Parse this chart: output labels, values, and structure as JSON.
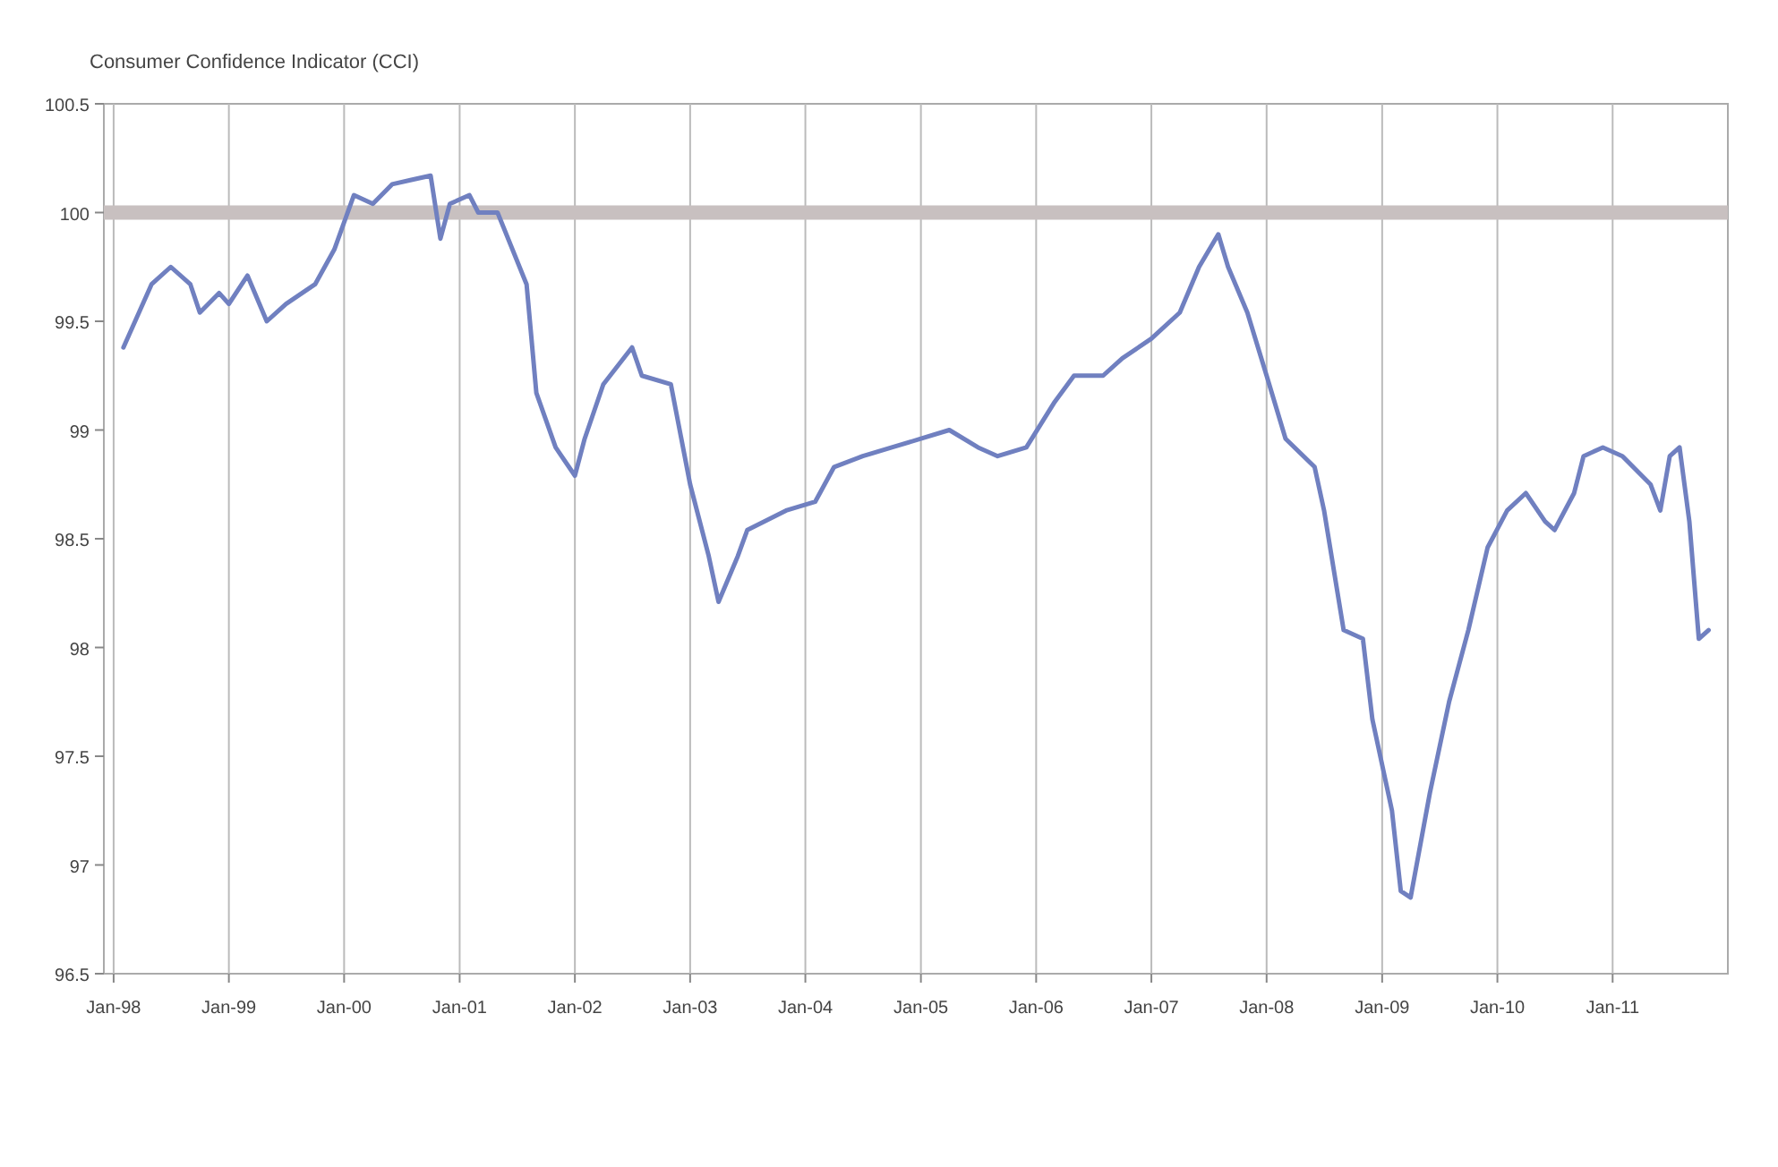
{
  "chart_data": {
    "type": "line",
    "title": "Consumer Confidence Indicator (CCI)",
    "x": [
      "1998-02",
      "1998-05",
      "1998-07",
      "1998-09",
      "1998-10",
      "1998-12",
      "1999-01",
      "1999-03",
      "1999-05",
      "1999-07",
      "1999-10",
      "1999-12",
      "2000-02",
      "2000-04",
      "2000-06",
      "2000-08",
      "2000-10",
      "2000-11",
      "2000-12",
      "2001-02",
      "2001-03",
      "2001-05",
      "2001-08",
      "2001-09",
      "2001-11",
      "2002-01",
      "2002-02",
      "2002-04",
      "2002-07",
      "2002-08",
      "2002-11",
      "2003-01",
      "2003-03",
      "2003-04",
      "2003-06",
      "2003-07",
      "2003-11",
      "2004-02",
      "2004-04",
      "2004-07",
      "2004-10",
      "2005-01",
      "2005-04",
      "2005-07",
      "2005-09",
      "2005-12",
      "2006-03",
      "2006-05",
      "2006-08",
      "2006-10",
      "2007-01",
      "2007-04",
      "2007-06",
      "2007-08",
      "2007-09",
      "2007-11",
      "2008-01",
      "2008-03",
      "2008-06",
      "2008-07",
      "2008-09",
      "2008-11",
      "2008-12",
      "2009-02",
      "2009-03",
      "2009-04",
      "2009-06",
      "2009-08",
      "2009-10",
      "2009-12",
      "2010-02",
      "2010-04",
      "2010-06",
      "2010-07",
      "2010-09",
      "2010-10",
      "2010-12",
      "2011-02",
      "2011-05",
      "2011-06",
      "2011-07",
      "2011-08",
      "2011-09",
      "2011-10",
      "2011-11"
    ],
    "series": [
      {
        "color": "#7080c0",
        "values": [
          99.38,
          99.67,
          99.75,
          99.67,
          99.54,
          99.63,
          99.58,
          99.71,
          99.5,
          99.58,
          99.67,
          99.83,
          100.08,
          100.04,
          100.13,
          100.15,
          100.17,
          99.88,
          100.04,
          100.08,
          100,
          100,
          99.67,
          99.17,
          98.92,
          98.79,
          98.96,
          99.21,
          99.38,
          99.25,
          99.21,
          98.75,
          98.42,
          98.21,
          98.42,
          98.54,
          98.63,
          98.67,
          98.83,
          98.88,
          98.92,
          98.96,
          99,
          98.92,
          98.88,
          98.92,
          99.13,
          99.25,
          99.25,
          99.33,
          99.42,
          99.54,
          99.75,
          99.9,
          99.75,
          99.54,
          99.25,
          98.96,
          98.83,
          98.63,
          98.08,
          98.04,
          97.67,
          97.25,
          96.88,
          96.85,
          97.33,
          97.75,
          98.08,
          98.46,
          98.63,
          98.71,
          98.58,
          98.54,
          98.71,
          98.88,
          98.92,
          98.88,
          98.75,
          98.63,
          98.88,
          98.92,
          98.58,
          98.04,
          98.08
        ]
      }
    ],
    "xlim": [
      "1997-12",
      "2012-01"
    ],
    "xticks": [
      {
        "value": "1998-01",
        "label": "Jan-98"
      },
      {
        "value": "1999-01",
        "label": "Jan-99"
      },
      {
        "value": "2000-01",
        "label": "Jan-00"
      },
      {
        "value": "2001-01",
        "label": "Jan-01"
      },
      {
        "value": "2002-01",
        "label": "Jan-02"
      },
      {
        "value": "2003-01",
        "label": "Jan-03"
      },
      {
        "value": "2004-01",
        "label": "Jan-04"
      },
      {
        "value": "2005-01",
        "label": "Jan-05"
      },
      {
        "value": "2006-01",
        "label": "Jan-06"
      },
      {
        "value": "2007-01",
        "label": "Jan-07"
      },
      {
        "value": "2008-01",
        "label": "Jan-08"
      },
      {
        "value": "2009-01",
        "label": "Jan-09"
      },
      {
        "value": "2010-01",
        "label": "Jan-10"
      },
      {
        "value": "2011-01",
        "label": "Jan-11"
      }
    ],
    "ylim": [
      96.5,
      100.5
    ],
    "yticks": [
      96.5,
      97,
      97.5,
      98,
      98.5,
      99,
      99.5,
      100,
      100.5
    ],
    "grid": "x",
    "ref_lines": [
      {
        "axis": "y",
        "value": 100,
        "color": "#c8c0c0"
      }
    ]
  }
}
